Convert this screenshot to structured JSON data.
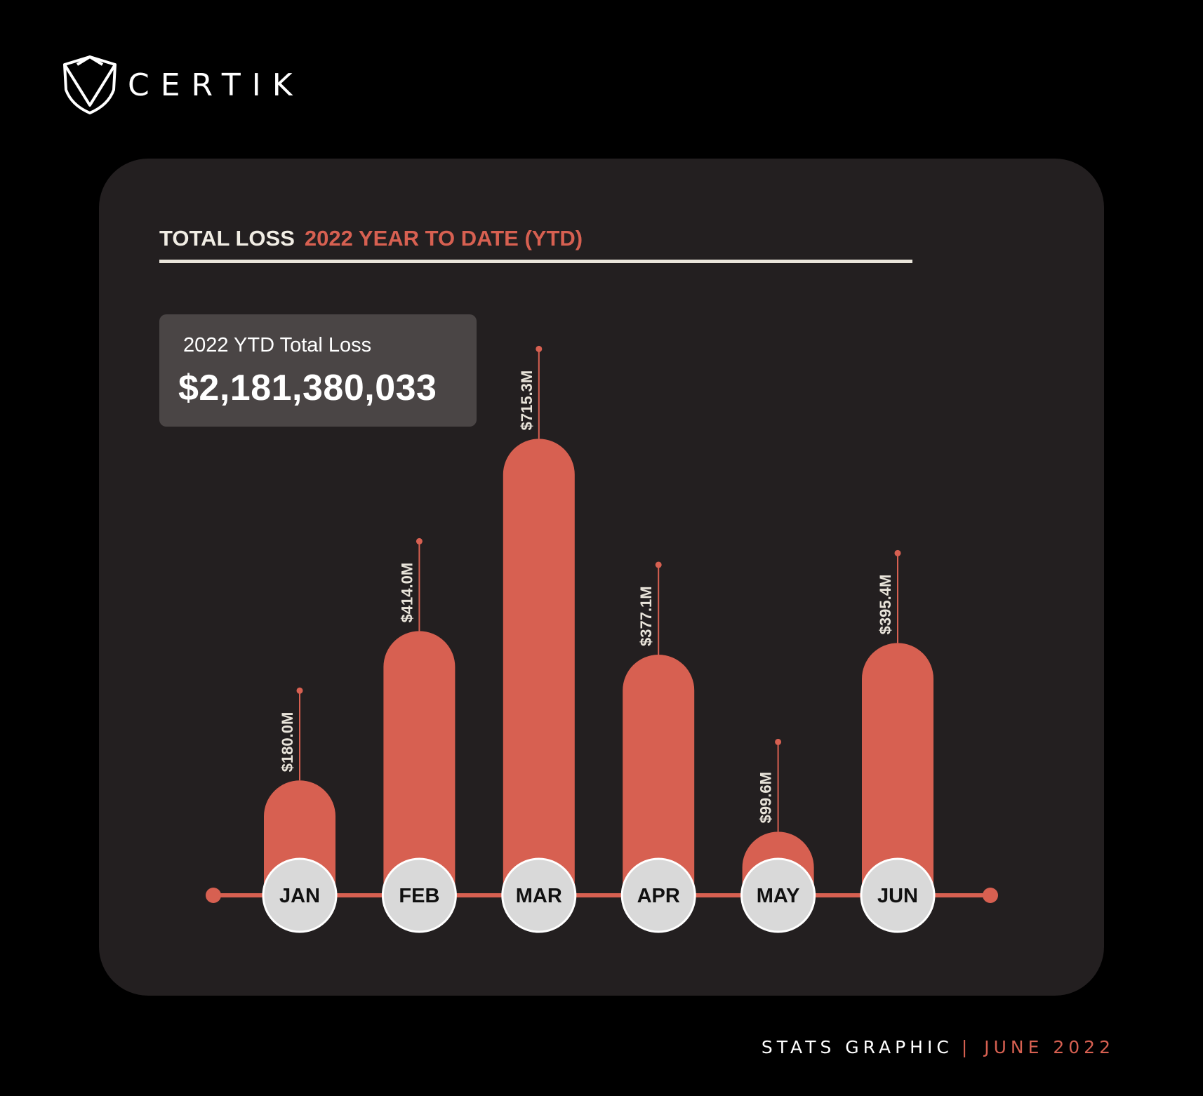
{
  "brand": {
    "name": "CERTIK",
    "logo_icon": "certik-shield-logo"
  },
  "header": {
    "title_main": "TOTAL LOSS",
    "title_accent": "2022 YEAR TO DATE (YTD)"
  },
  "summary": {
    "label": "2022 YTD Total Loss",
    "value": "$2,181,380,033"
  },
  "footer": {
    "main": "STATS GRAPHIC",
    "separator": "|",
    "accent": "JUNE 2022"
  },
  "colors": {
    "background": "#000000",
    "card": "#231f20",
    "accent": "#d76051",
    "summary_box": "#4a4545",
    "month_badge": "#d9d9d9"
  },
  "chart_data": {
    "type": "bar",
    "unit": "USD millions",
    "categories": [
      "JAN",
      "FEB",
      "MAR",
      "APR",
      "MAY",
      "JUN"
    ],
    "values": [
      180.0,
      414.0,
      715.3,
      377.1,
      99.6,
      395.4
    ],
    "value_labels": [
      "$180.0M",
      "$414.0M",
      "$715.3M",
      "$377.1M",
      "$99.6M",
      "$395.4M"
    ],
    "title": "TOTAL LOSS 2022 YEAR TO DATE (YTD)",
    "xlabel": "",
    "ylabel": "",
    "legend": "none",
    "grid": false
  }
}
